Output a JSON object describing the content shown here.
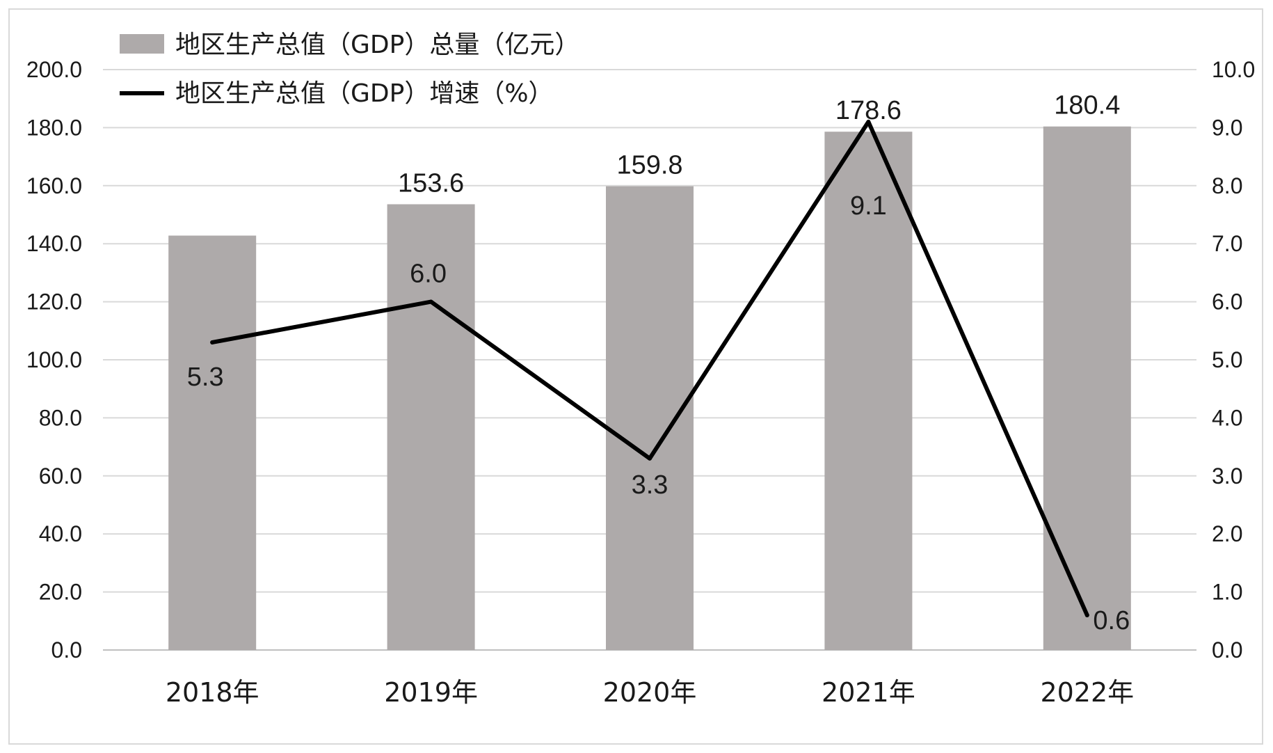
{
  "chart_data": {
    "type": "bar+line",
    "categories": [
      "2018年",
      "2019年",
      "2020年",
      "2021年",
      "2022年"
    ],
    "series": [
      {
        "name": "地区生产总值（GDP）总量（亿元）",
        "type": "bar",
        "axis": "left",
        "values": [
          142.8,
          153.6,
          159.8,
          178.6,
          180.4
        ],
        "labels": [
          "",
          "153.6",
          "159.8",
          "178.6",
          "180.4"
        ],
        "color": "#aeaaaa"
      },
      {
        "name": "地区生产总值（GDP）增速（%）",
        "type": "line",
        "axis": "right",
        "values": [
          5.3,
          6.0,
          3.3,
          9.1,
          0.6
        ],
        "labels": [
          "5.3",
          "6.0",
          "3.3",
          "9.1",
          "0.6"
        ],
        "color": "#000000"
      }
    ],
    "left_axis": {
      "ylim": [
        0,
        200
      ],
      "ticks": [
        "0.0",
        "20.0",
        "40.0",
        "60.0",
        "80.0",
        "100.0",
        "120.0",
        "140.0",
        "160.0",
        "180.0",
        "200.0"
      ]
    },
    "right_axis": {
      "ylim": [
        0,
        10
      ],
      "ticks": [
        "0.0",
        "1.0",
        "2.0",
        "3.0",
        "4.0",
        "5.0",
        "6.0",
        "7.0",
        "8.0",
        "9.0",
        "10.0"
      ]
    },
    "grid": true,
    "legend_position": "top-left"
  }
}
